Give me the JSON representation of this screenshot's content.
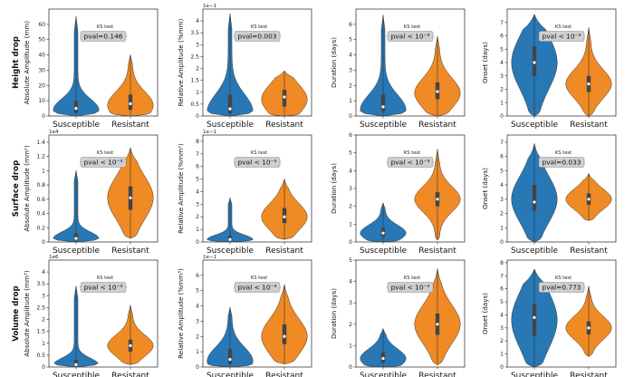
{
  "colors": {
    "susceptible": "#2878b5",
    "resistant": "#f08a24"
  },
  "chart_data": [
    {
      "type": "violin",
      "row": "Height drop",
      "ylabel": "Absolute Amplitude (mm)",
      "exponent": "",
      "ylim": [
        0,
        7
      ],
      "yticks": [
        0,
        10,
        20,
        30,
        40,
        50,
        60
      ],
      "ylim_data": [
        0,
        70
      ],
      "categories": [
        "Susceptible",
        "Resistant"
      ],
      "ks_title": "KS test",
      "pval": "pval=0.146",
      "series": [
        {
          "name": "Susceptible",
          "median": 5,
          "q1": 2,
          "q3": 10,
          "min": 0,
          "max": 65,
          "peak": 4
        },
        {
          "name": "Resistant",
          "median": 8,
          "q1": 4,
          "q3": 14,
          "min": 0,
          "max": 40,
          "peak": 7
        }
      ]
    },
    {
      "type": "violin",
      "row": "Height drop",
      "ylabel": "Relative Amplitude (%mm)",
      "exponent": "1e−1",
      "ylim_data": [
        0,
        4.5
      ],
      "yticks": [
        0,
        0.5,
        1.0,
        1.5,
        2.0,
        2.5,
        3.0,
        3.5,
        4.0
      ],
      "categories": [
        "Susceptible",
        "Resistant"
      ],
      "ks_title": "KS test",
      "pval": "pval=0.003",
      "series": [
        {
          "name": "Susceptible",
          "median": 0.3,
          "q1": 0.1,
          "q3": 0.9,
          "min": 0,
          "max": 4.3,
          "peak": 0.2
        },
        {
          "name": "Resistant",
          "median": 0.8,
          "q1": 0.4,
          "q3": 1.1,
          "min": 0,
          "max": 1.9,
          "peak": 0.7
        }
      ]
    },
    {
      "type": "violin",
      "row": "Height drop",
      "ylabel": "Duration (days)",
      "exponent": "",
      "ylim_data": [
        0,
        7
      ],
      "yticks": [
        0,
        1,
        2,
        3,
        4,
        5,
        6
      ],
      "categories": [
        "Susceptible",
        "Resistant"
      ],
      "ks_title": "KS test",
      "pval": "pval < 10⁻³",
      "series": [
        {
          "name": "Susceptible",
          "median": 0.6,
          "q1": 0.3,
          "q3": 1.4,
          "min": 0,
          "max": 6.6,
          "peak": 0.4
        },
        {
          "name": "Resistant",
          "median": 1.6,
          "q1": 1.1,
          "q3": 2.2,
          "min": 0,
          "max": 5.2,
          "peak": 1.5
        }
      ]
    },
    {
      "type": "violin",
      "row": "Height drop",
      "ylabel": "Onset (days)",
      "exponent": "",
      "ylim_data": [
        0,
        8
      ],
      "yticks": [
        0,
        1,
        2,
        3,
        4,
        5,
        6,
        7
      ],
      "categories": [
        "Susceptible",
        "Resistant"
      ],
      "ks_title": "KS test",
      "pval": "pval < 10⁻³",
      "series": [
        {
          "name": "Susceptible",
          "median": 4.0,
          "q1": 3.0,
          "q3": 5.2,
          "min": 0,
          "max": 7.6,
          "peak": 4.0
        },
        {
          "name": "Resistant",
          "median": 2.4,
          "q1": 1.8,
          "q3": 3.0,
          "min": 0,
          "max": 6.6,
          "peak": 2.4
        }
      ]
    },
    {
      "type": "violin",
      "row": "Surface drop",
      "ylabel": "Absolute Amplitude (mm²)",
      "exponent": "1e4",
      "ylim_data": [
        0,
        1.5
      ],
      "yticks": [
        0.0,
        0.2,
        0.4,
        0.6,
        0.8,
        1.0,
        1.2,
        1.4
      ],
      "categories": [
        "Susceptible",
        "Resistant"
      ],
      "ks_title": "KS test",
      "pval": "pval < 10⁻³",
      "series": [
        {
          "name": "Susceptible",
          "median": 0.05,
          "q1": 0.02,
          "q3": 0.12,
          "min": 0,
          "max": 1.0,
          "peak": 0.05
        },
        {
          "name": "Resistant",
          "median": 0.62,
          "q1": 0.45,
          "q3": 0.78,
          "min": 0.05,
          "max": 1.32,
          "peak": 0.62
        }
      ]
    },
    {
      "type": "violin",
      "row": "Surface drop",
      "ylabel": "Relative Amplitude (%mm²)",
      "exponent": "1e−1",
      "ylim_data": [
        0,
        8.5
      ],
      "yticks": [
        0,
        1,
        2,
        3,
        4,
        5,
        6,
        7,
        8
      ],
      "categories": [
        "Susceptible",
        "Resistant"
      ],
      "ks_title": "KS test",
      "pval": "pval < 10⁻³",
      "series": [
        {
          "name": "Susceptible",
          "median": 0.2,
          "q1": 0.1,
          "q3": 0.5,
          "min": 0,
          "max": 3.5,
          "peak": 0.2
        },
        {
          "name": "Resistant",
          "median": 2.0,
          "q1": 1.5,
          "q3": 2.7,
          "min": 0.2,
          "max": 5.0,
          "peak": 2.0
        }
      ]
    },
    {
      "type": "violin",
      "row": "Surface drop",
      "ylabel": "Duration (days)",
      "exponent": "",
      "ylim_data": [
        0,
        6
      ],
      "yticks": [
        0,
        1,
        2,
        3,
        4,
        5,
        6
      ],
      "categories": [
        "Susceptible",
        "Resistant"
      ],
      "ks_title": "KS test",
      "pval": "pval < 10⁻³",
      "series": [
        {
          "name": "Susceptible",
          "median": 0.5,
          "q1": 0.3,
          "q3": 0.8,
          "min": 0,
          "max": 2.2,
          "peak": 0.5
        },
        {
          "name": "Resistant",
          "median": 2.4,
          "q1": 2.0,
          "q3": 2.8,
          "min": 0.1,
          "max": 5.2,
          "peak": 2.4
        }
      ]
    },
    {
      "type": "violin",
      "row": "Surface drop",
      "ylabel": "Onset (days)",
      "exponent": "",
      "ylim_data": [
        0,
        7.5
      ],
      "yticks": [
        0,
        1,
        2,
        3,
        4,
        5,
        6,
        7
      ],
      "categories": [
        "Susceptible",
        "Resistant"
      ],
      "ks_title": "KS test",
      "pval": "pval=0.033",
      "series": [
        {
          "name": "Susceptible",
          "median": 2.8,
          "q1": 2.2,
          "q3": 4.0,
          "min": 0,
          "max": 6.9,
          "peak": 3.0
        },
        {
          "name": "Resistant",
          "median": 3.0,
          "q1": 2.6,
          "q3": 3.4,
          "min": 1.5,
          "max": 4.8,
          "peak": 3.0
        }
      ]
    },
    {
      "type": "violin",
      "row": "Volume drop",
      "ylabel": "Absolute Amplitude (mm³)",
      "exponent": "1e6",
      "ylim_data": [
        0,
        4.5
      ],
      "yticks": [
        0.0,
        0.5,
        1.0,
        1.5,
        2.0,
        2.5,
        3.0,
        3.5,
        4.0
      ],
      "categories": [
        "Susceptible",
        "Resistant"
      ],
      "ks_title": "KS test",
      "pval": "pval < 10⁻³",
      "series": [
        {
          "name": "Susceptible",
          "median": 0.1,
          "q1": 0.05,
          "q3": 0.3,
          "min": 0,
          "max": 3.4,
          "peak": 0.1
        },
        {
          "name": "Resistant",
          "median": 0.9,
          "q1": 0.65,
          "q3": 1.15,
          "min": 0.1,
          "max": 2.6,
          "peak": 0.9
        }
      ]
    },
    {
      "type": "violin",
      "row": "Volume drop",
      "ylabel": "Relative Amplitude (%mm³)",
      "exponent": "1e−1",
      "ylim_data": [
        0,
        7
      ],
      "yticks": [
        0,
        1,
        2,
        3,
        4,
        5,
        6
      ],
      "categories": [
        "Susceptible",
        "Resistant"
      ],
      "ks_title": "KS test",
      "pval": "pval < 10⁻³",
      "series": [
        {
          "name": "Susceptible",
          "median": 0.5,
          "q1": 0.2,
          "q3": 1.2,
          "min": 0,
          "max": 3.9,
          "peak": 0.4
        },
        {
          "name": "Resistant",
          "median": 2.0,
          "q1": 1.5,
          "q3": 2.8,
          "min": 0.2,
          "max": 5.4,
          "peak": 2.0
        }
      ]
    },
    {
      "type": "violin",
      "row": "Volume drop",
      "ylabel": "Duration (days)",
      "exponent": "",
      "ylim_data": [
        0,
        5
      ],
      "yticks": [
        0,
        1,
        2,
        3,
        4,
        5
      ],
      "categories": [
        "Susceptible",
        "Resistant"
      ],
      "ks_title": "KS test",
      "pval": "pval < 10⁻³",
      "series": [
        {
          "name": "Susceptible",
          "median": 0.4,
          "q1": 0.2,
          "q3": 0.7,
          "min": 0,
          "max": 1.8,
          "peak": 0.4
        },
        {
          "name": "Resistant",
          "median": 2.0,
          "q1": 1.5,
          "q3": 2.5,
          "min": 0.1,
          "max": 4.6,
          "peak": 2.0
        }
      ]
    },
    {
      "type": "violin",
      "row": "Volume drop",
      "ylabel": "Onset (days)",
      "exponent": "",
      "ylim_data": [
        0,
        8.2
      ],
      "yticks": [
        0,
        1,
        2,
        3,
        4,
        5,
        6,
        7,
        8
      ],
      "categories": [
        "Susceptible",
        "Resistant"
      ],
      "ks_title": "KS test",
      "pval": "pval=0.773",
      "series": [
        {
          "name": "Susceptible",
          "median": 3.8,
          "q1": 2.4,
          "q3": 4.8,
          "min": 0,
          "max": 7.5,
          "peak": 3.6
        },
        {
          "name": "Resistant",
          "median": 3.0,
          "q1": 2.5,
          "q3": 3.5,
          "min": 0.8,
          "max": 6.2,
          "peak": 3.0
        }
      ]
    }
  ],
  "row_labels": [
    "Height drop",
    "Surface drop",
    "Volume drop"
  ]
}
